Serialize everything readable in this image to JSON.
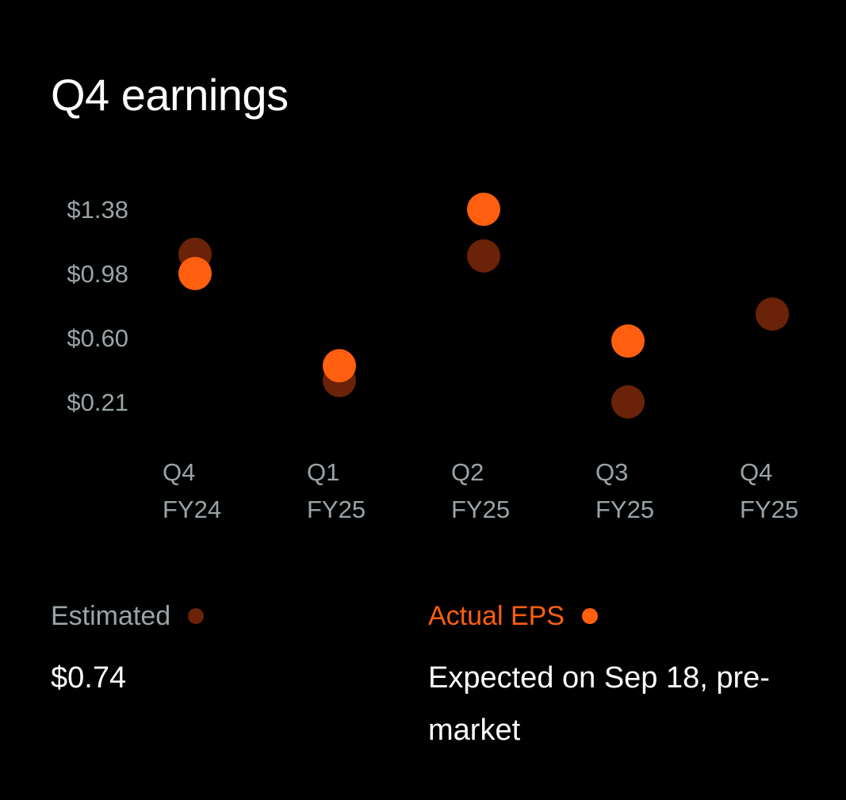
{
  "title": "Q4 earnings",
  "colors": {
    "estimated": "#6a2208",
    "actual": "#ff5f0f",
    "axis_text": "#9aa4a8",
    "background": "#000000"
  },
  "chart_data": {
    "type": "scatter",
    "y_ticks": [
      {
        "label": "$1.38",
        "value": 1.38
      },
      {
        "label": "$0.98",
        "value": 0.98
      },
      {
        "label": "$0.60",
        "value": 0.6
      },
      {
        "label": "$0.21",
        "value": 0.21
      }
    ],
    "categories": [
      {
        "line1": "Q4",
        "line2": "FY24"
      },
      {
        "line1": "Q1",
        "line2": "FY25"
      },
      {
        "line1": "Q2",
        "line2": "FY25"
      },
      {
        "line1": "Q3",
        "line2": "FY25"
      },
      {
        "line1": "Q4",
        "line2": "FY25"
      }
    ],
    "series": [
      {
        "name": "Estimated",
        "values": [
          1.1,
          0.34,
          1.09,
          0.21,
          0.74
        ]
      },
      {
        "name": "Actual EPS",
        "values": [
          0.98,
          0.43,
          1.38,
          0.58,
          null
        ]
      }
    ],
    "grid": false
  },
  "legend": {
    "estimated": {
      "label": "Estimated",
      "value": "$0.74"
    },
    "actual": {
      "label": "Actual EPS",
      "value": "Expected on Sep 18, pre-market"
    }
  }
}
